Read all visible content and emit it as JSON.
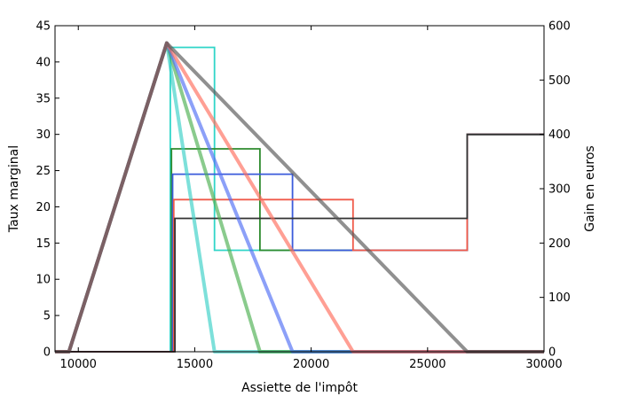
{
  "chart_data": {
    "type": "line",
    "xlabel": "Assiette de l'impôt",
    "ylabel_left": "Taux marginal",
    "ylabel_right": "Gain en euros",
    "xlim": [
      9000,
      30000
    ],
    "ylim_left": [
      0,
      45
    ],
    "ylim_right": [
      0,
      600
    ],
    "x_ticks": [
      10000,
      15000,
      20000,
      25000,
      30000
    ],
    "y_left_ticks": [
      0,
      5,
      10,
      15,
      20,
      25,
      30,
      35,
      40,
      45
    ],
    "y_right_ticks": [
      0,
      100,
      200,
      300,
      400,
      500,
      600
    ],
    "grid": false,
    "marginal_rate_series": [
      {
        "color": "#30d5c8",
        "points": [
          [
            9000,
            0
          ],
          [
            13950,
            0
          ],
          [
            13950,
            42
          ],
          [
            15850,
            42
          ],
          [
            15850,
            14
          ],
          [
            26700,
            14
          ],
          [
            26700,
            30
          ],
          [
            30000,
            30
          ]
        ]
      },
      {
        "color": "#2e8b2e",
        "points": [
          [
            9000,
            0
          ],
          [
            14000,
            0
          ],
          [
            14000,
            28
          ],
          [
            17800,
            28
          ],
          [
            17800,
            14
          ],
          [
            26700,
            14
          ],
          [
            26700,
            30
          ],
          [
            30000,
            30
          ]
        ]
      },
      {
        "color": "#3b5bdb",
        "points": [
          [
            9000,
            0
          ],
          [
            14050,
            0
          ],
          [
            14050,
            24.5
          ],
          [
            19200,
            24.5
          ],
          [
            19200,
            14
          ],
          [
            26700,
            14
          ],
          [
            26700,
            30
          ],
          [
            30000,
            30
          ]
        ]
      },
      {
        "color": "#f05a4a",
        "points": [
          [
            9000,
            0
          ],
          [
            14100,
            0
          ],
          [
            14100,
            21
          ],
          [
            21800,
            21
          ],
          [
            21800,
            14
          ],
          [
            26700,
            14
          ],
          [
            26700,
            30
          ],
          [
            30000,
            30
          ]
        ]
      },
      {
        "color": "#333333",
        "points": [
          [
            9000,
            0
          ],
          [
            14150,
            0
          ],
          [
            14150,
            18.4
          ],
          [
            26700,
            18.4
          ],
          [
            26700,
            30
          ],
          [
            30000,
            30
          ]
        ]
      }
    ],
    "gain_series": [
      {
        "color": "#37cfc6",
        "points": [
          [
            9000,
            0
          ],
          [
            9600,
            0
          ],
          [
            13800,
            568
          ],
          [
            15850,
            0
          ],
          [
            30000,
            0
          ]
        ]
      },
      {
        "color": "#4caf50",
        "points": [
          [
            9000,
            0
          ],
          [
            9600,
            0
          ],
          [
            13800,
            568
          ],
          [
            17800,
            0
          ],
          [
            30000,
            0
          ]
        ]
      },
      {
        "color": "#4f6df5",
        "points": [
          [
            9000,
            0
          ],
          [
            9600,
            0
          ],
          [
            13800,
            568
          ],
          [
            19200,
            0
          ],
          [
            30000,
            0
          ]
        ]
      },
      {
        "color": "#ff6b5a",
        "points": [
          [
            9000,
            0
          ],
          [
            9600,
            0
          ],
          [
            13800,
            568
          ],
          [
            21800,
            0
          ],
          [
            30000,
            0
          ]
        ]
      },
      {
        "color": "#555555",
        "points": [
          [
            9000,
            0
          ],
          [
            9600,
            0
          ],
          [
            13800,
            568
          ],
          [
            26700,
            0
          ],
          [
            30000,
            0
          ]
        ]
      }
    ]
  }
}
